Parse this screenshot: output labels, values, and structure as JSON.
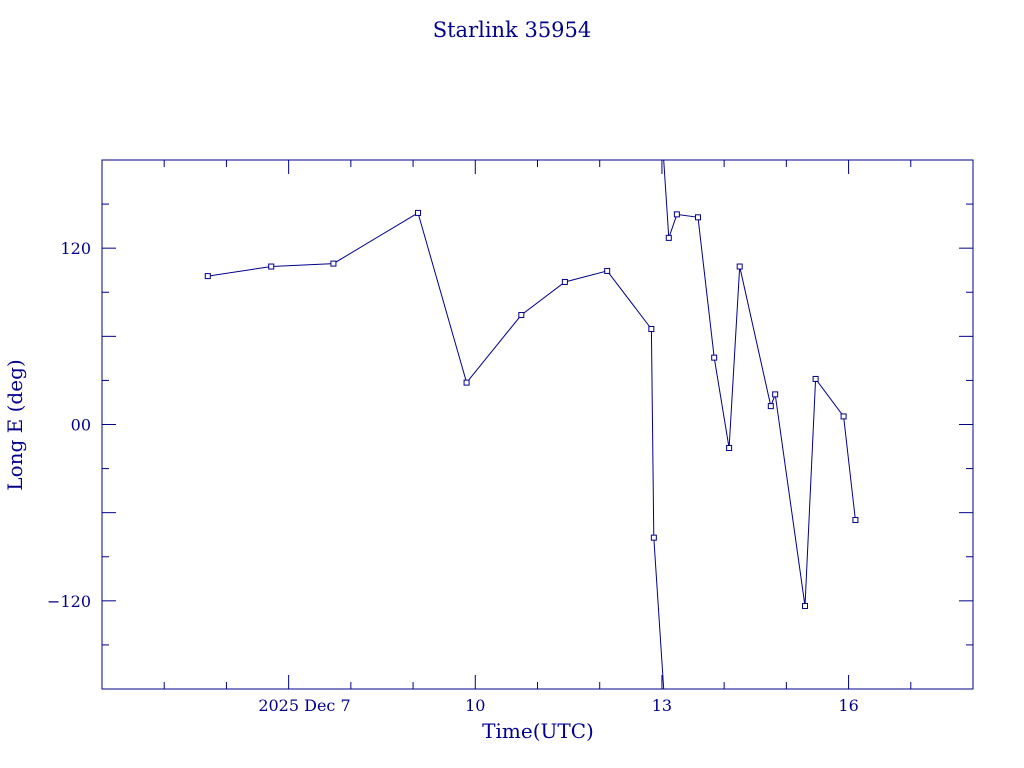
{
  "chart_data": {
    "type": "line",
    "title": "Starlink 35954",
    "xlabel": "Time(UTC)",
    "ylabel": "Long E (deg)",
    "x_unit": "days (December 2025)",
    "xlim": [
      4.0,
      18.0
    ],
    "ylim": [
      -180,
      180
    ],
    "x_ticks": [
      {
        "value": 7,
        "label": "2025 Dec  7"
      },
      {
        "value": 10,
        "label": "10"
      },
      {
        "value": 13,
        "label": "13"
      },
      {
        "value": 16,
        "label": "16"
      }
    ],
    "y_ticks": [
      {
        "value": 120,
        "label": "120"
      },
      {
        "value": 0,
        "label": "00"
      },
      {
        "value": -120,
        "label": "−120"
      }
    ],
    "series": [
      {
        "color": "#00008b",
        "marker": "square",
        "x": [
          5.7,
          6.72,
          7.72,
          9.08,
          9.86,
          10.74,
          11.44,
          12.12,
          12.83,
          12.87,
          13.11,
          13.24,
          13.58,
          13.84,
          14.08,
          14.25,
          14.75,
          14.82,
          15.3,
          15.47,
          15.92,
          16.11
        ],
        "y": [
          101,
          107.5,
          109.5,
          144,
          28.5,
          74.5,
          97,
          104.5,
          65,
          -77,
          127,
          143,
          141,
          45.5,
          -16,
          107.5,
          12.5,
          20.5,
          -123.5,
          31,
          5.5,
          -65
        ],
        "wrap_after_index": 9
      }
    ]
  }
}
